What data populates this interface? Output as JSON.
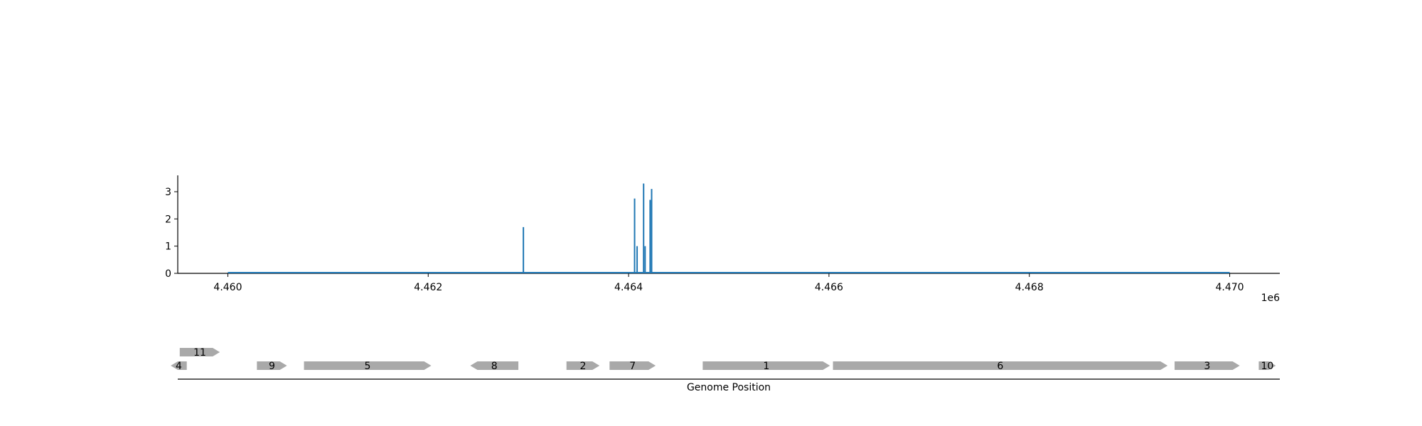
{
  "chart_data": [
    {
      "type": "line",
      "title": "",
      "xlabel": "",
      "ylabel": "",
      "x_offset_label": "1e6",
      "xlim": [
        4459500,
        4470500
      ],
      "ylim": [
        0,
        3.6
      ],
      "x_range": [
        4460000,
        4470000
      ],
      "x_ticks": [
        4460000,
        4462000,
        4464000,
        4466000,
        4468000,
        4470000
      ],
      "x_tick_labels": [
        "4.460",
        "4.462",
        "4.464",
        "4.466",
        "4.468",
        "4.470"
      ],
      "y_ticks": [
        0,
        1,
        2,
        3
      ],
      "y_tick_labels": [
        "0",
        "1",
        "2",
        "3"
      ],
      "color": "#1f77b4",
      "grid": false,
      "spikes": [
        {
          "x": 4462950,
          "y": 1.7
        },
        {
          "x": 4464060,
          "y": 2.75
        },
        {
          "x": 4464085,
          "y": 1.0
        },
        {
          "x": 4464150,
          "y": 3.3
        },
        {
          "x": 4464165,
          "y": 1.0
        },
        {
          "x": 4464215,
          "y": 2.7
        },
        {
          "x": 4464230,
          "y": 3.1
        }
      ]
    },
    {
      "type": "gene-track",
      "xlabel": "Genome Position",
      "xlim": [
        4459500,
        4470500
      ],
      "color": "#a9a9a9",
      "genes": [
        {
          "label": "11",
          "start": 4459520,
          "end": 4459920,
          "strand": "+",
          "row": 1
        },
        {
          "label": "4",
          "start": 4459430,
          "end": 4459590,
          "strand": "-",
          "row": 0
        },
        {
          "label": "9",
          "start": 4460290,
          "end": 4460590,
          "strand": "+",
          "row": 0
        },
        {
          "label": "5",
          "start": 4460760,
          "end": 4462030,
          "strand": "+",
          "row": 0
        },
        {
          "label": "8",
          "start": 4462420,
          "end": 4462900,
          "strand": "-",
          "row": 0
        },
        {
          "label": "2",
          "start": 4463380,
          "end": 4463710,
          "strand": "+",
          "row": 0
        },
        {
          "label": "7",
          "start": 4463810,
          "end": 4464270,
          "strand": "+",
          "row": 0
        },
        {
          "label": "1",
          "start": 4464740,
          "end": 4466010,
          "strand": "+",
          "row": 0
        },
        {
          "label": "6",
          "start": 4466040,
          "end": 4469380,
          "strand": "+",
          "row": 0
        },
        {
          "label": "3",
          "start": 4469450,
          "end": 4470100,
          "strand": "+",
          "row": 0
        },
        {
          "label": "10",
          "start": 4470290,
          "end": 4470460,
          "strand": "+",
          "row": 0
        }
      ]
    }
  ]
}
